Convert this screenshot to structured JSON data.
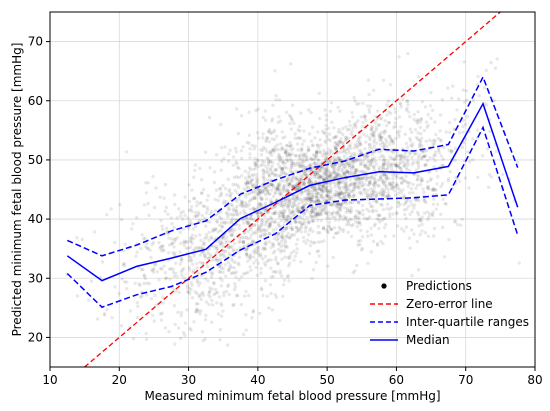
{
  "chart_data": {
    "type": "scatter",
    "xlabel": "Measured minimum fetal blood pressure [mmHg]",
    "ylabel": "Predicted minimum fetal blood pressure [mmHg]",
    "xlim": [
      10,
      80
    ],
    "ylim": [
      15,
      75
    ],
    "xticks": [
      10,
      20,
      30,
      40,
      50,
      60,
      70,
      80
    ],
    "yticks": [
      20,
      30,
      40,
      50,
      60,
      70
    ],
    "grid": true,
    "legend_position": "bottom-right",
    "legend": [
      {
        "label": "Predictions",
        "style": "marker",
        "color": "#000000"
      },
      {
        "label": "Zero-error line",
        "style": "dashed",
        "color": "#ff0000"
      },
      {
        "label": "Inter-quartile ranges",
        "style": "dashed",
        "color": "#0000ff"
      },
      {
        "label": "Median",
        "style": "solid",
        "color": "#0000ff"
      }
    ],
    "zero_error_line": {
      "x": [
        15,
        75.5
      ],
      "y": [
        15,
        75.5
      ],
      "color": "#ff0000"
    },
    "median": {
      "color": "#0000ff",
      "x": [
        12.5,
        17.5,
        22.5,
        27.5,
        32.5,
        37.5,
        42.5,
        47.5,
        52.5,
        57.5,
        62.5,
        67.5,
        72.5,
        77.5
      ],
      "y": [
        33.8,
        29.6,
        32,
        33.4,
        34.9,
        40.1,
        42.8,
        45.7,
        47,
        48,
        47.8,
        48.9,
        59.5,
        42
      ]
    },
    "upper_quartile": {
      "color": "#0000ff",
      "x": [
        12.5,
        17.5,
        22.5,
        27.5,
        32.5,
        37.5,
        42.5,
        47.5,
        52.5,
        57.5,
        62.5,
        67.5,
        72.5,
        77.5
      ],
      "y": [
        36.4,
        33.8,
        35.6,
        38,
        39.7,
        44.2,
        46.6,
        48.6,
        49.8,
        51.8,
        51.5,
        52.6,
        64,
        48.7
      ]
    },
    "lower_quartile": {
      "color": "#0000ff",
      "x": [
        12.5,
        17.5,
        22.5,
        27.5,
        32.5,
        37.5,
        42.5,
        47.5,
        52.5,
        57.5,
        62.5,
        67.5,
        72.5,
        77.5
      ],
      "y": [
        30.8,
        25.1,
        27.2,
        28.6,
        31,
        34.8,
        37.5,
        42.3,
        43.2,
        43.4,
        43.6,
        44.1,
        55.5,
        37.3
      ]
    },
    "predictions_cloud": {
      "color": "#000000",
      "x_range": [
        12,
        78
      ],
      "y_range": [
        18,
        69
      ],
      "center": [
        47,
        47
      ]
    }
  }
}
